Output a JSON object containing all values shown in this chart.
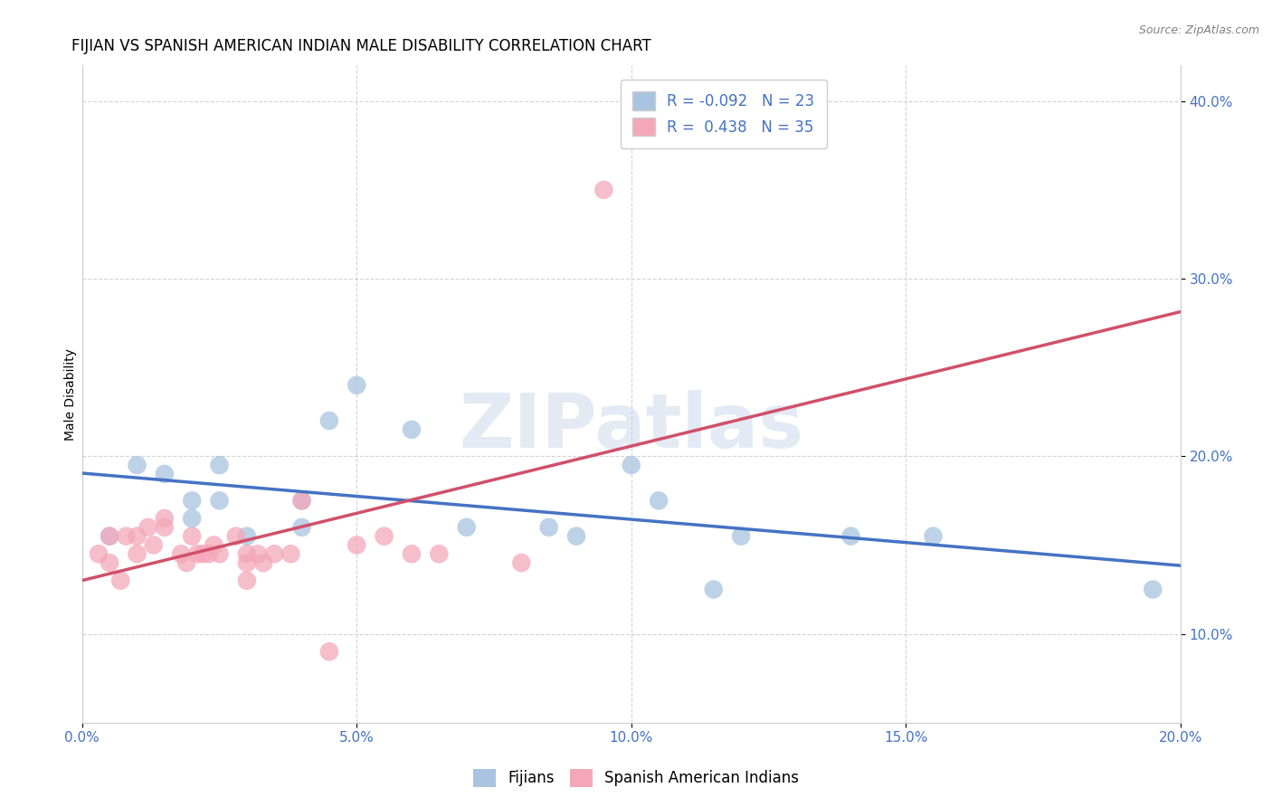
{
  "title": "FIJIAN VS SPANISH AMERICAN INDIAN MALE DISABILITY CORRELATION CHART",
  "source": "Source: ZipAtlas.com",
  "xlabel": "",
  "ylabel": "Male Disability",
  "xlim": [
    0.0,
    0.2
  ],
  "ylim": [
    0.05,
    0.42
  ],
  "x_ticks": [
    0.0,
    0.05,
    0.1,
    0.15,
    0.2
  ],
  "x_tick_labels": [
    "0.0%",
    "5.0%",
    "10.0%",
    "15.0%",
    "20.0%"
  ],
  "y_ticks": [
    0.1,
    0.2,
    0.3,
    0.4
  ],
  "y_tick_labels": [
    "10.0%",
    "20.0%",
    "30.0%",
    "40.0%"
  ],
  "fijian_R": -0.092,
  "fijian_N": 23,
  "spanish_R": 0.438,
  "spanish_N": 35,
  "fijian_color": "#a8c4e0",
  "fijian_line_color": "#4472c4",
  "spanish_color": "#f4a7b9",
  "spanish_line_color": "#d0506a",
  "fijian_points_x": [
    0.005,
    0.01,
    0.015,
    0.02,
    0.02,
    0.025,
    0.025,
    0.03,
    0.04,
    0.04,
    0.045,
    0.05,
    0.06,
    0.07,
    0.085,
    0.09,
    0.1,
    0.105,
    0.115,
    0.12,
    0.14,
    0.155,
    0.195
  ],
  "fijian_points_y": [
    0.155,
    0.195,
    0.19,
    0.175,
    0.165,
    0.195,
    0.175,
    0.155,
    0.175,
    0.16,
    0.22,
    0.24,
    0.215,
    0.16,
    0.16,
    0.155,
    0.195,
    0.175,
    0.125,
    0.155,
    0.155,
    0.155,
    0.125
  ],
  "spanish_points_x": [
    0.003,
    0.005,
    0.005,
    0.007,
    0.008,
    0.01,
    0.01,
    0.012,
    0.013,
    0.015,
    0.015,
    0.018,
    0.019,
    0.02,
    0.021,
    0.022,
    0.023,
    0.024,
    0.025,
    0.028,
    0.03,
    0.03,
    0.03,
    0.032,
    0.033,
    0.035,
    0.038,
    0.04,
    0.045,
    0.05,
    0.055,
    0.06,
    0.065,
    0.08,
    0.095
  ],
  "spanish_points_y": [
    0.145,
    0.155,
    0.14,
    0.13,
    0.155,
    0.155,
    0.145,
    0.16,
    0.15,
    0.16,
    0.165,
    0.145,
    0.14,
    0.155,
    0.145,
    0.145,
    0.145,
    0.15,
    0.145,
    0.155,
    0.145,
    0.14,
    0.13,
    0.145,
    0.14,
    0.145,
    0.145,
    0.175,
    0.09,
    0.15,
    0.155,
    0.145,
    0.145,
    0.14,
    0.35
  ],
  "watermark": "ZIPatlas",
  "background_color": "#ffffff",
  "grid_color": "#c8c8c8",
  "title_fontsize": 12,
  "axis_label_fontsize": 10,
  "tick_fontsize": 11,
  "legend_fontsize": 12
}
